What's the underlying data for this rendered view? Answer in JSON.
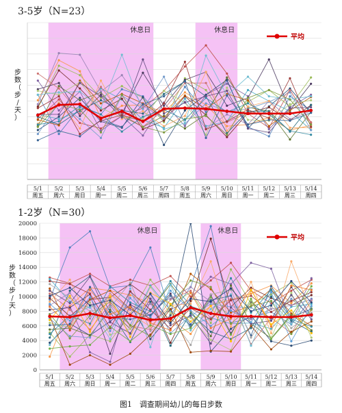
{
  "chart_data": [
    {
      "type": "line",
      "title": "3-5岁（N=23）",
      "ylabel": "步数（步/天）",
      "y_ticks_labeled": false,
      "ylim": [
        0,
        20000
      ],
      "grid": true,
      "legend": "top-right",
      "categories": [
        "5/1",
        "5/2",
        "5/3",
        "5/4",
        "5/5",
        "5/6",
        "5/7",
        "5/8",
        "5/9",
        "5/10",
        "5/11",
        "5/12",
        "5/13",
        "5/14"
      ],
      "weekdays": [
        "周五",
        "周六",
        "周日",
        "周一",
        "周二",
        "周三",
        "周四",
        "周五",
        "周六",
        "周日",
        "周一",
        "周二",
        "周三",
        "周四"
      ],
      "rest_periods": [
        {
          "from": "5/2",
          "to": "5/6",
          "label": "休息日"
        },
        {
          "from": "5/9",
          "to": "5/10",
          "label": "休息日"
        }
      ],
      "average": {
        "name": "平均",
        "color": "#e00000",
        "values": [
          8200,
          9500,
          9600,
          7800,
          8700,
          7400,
          9000,
          9100,
          9000,
          8700,
          8400,
          8400,
          8400,
          8800
        ]
      },
      "individual_series": [
        [
          10800,
          5800,
          9200,
          8300,
          11500,
          10600,
          7500,
          11800,
          8600,
          12600,
          6700,
          5500,
          10600,
          8800
        ],
        [
          7700,
          10200,
          7200,
          6500,
          8100,
          9100,
          11300,
          14400,
          17100,
          13500,
          8400,
          6600,
          11400,
          7200
        ],
        [
          9100,
          14500,
          13300,
          10400,
          11900,
          10400,
          7300,
          12900,
          11400,
          7400,
          9900,
          11400,
          9300,
          13000
        ],
        [
          12600,
          8800,
          11200,
          6200,
          8100,
          5600,
          9800,
          6800,
          10800,
          12200,
          10600,
          6400,
          9200,
          10800
        ],
        [
          8300,
          7700,
          8700,
          11600,
          10200,
          7600,
          6600,
          10300,
          6800,
          7400,
          11400,
          10000,
          8700,
          6300
        ],
        [
          10100,
          15200,
          13800,
          7800,
          9400,
          9500,
          8600,
          11100,
          9500,
          6800,
          7000,
          7900,
          6300,
          6900
        ],
        [
          6300,
          8000,
          10400,
          7400,
          6600,
          10500,
          4400,
          8800,
          10800,
          12700,
          6500,
          9300,
          11600,
          8500
        ],
        [
          9300,
          13900,
          11600,
          8800,
          10300,
          6400,
          7500,
          10600,
          8200,
          5400,
          8500,
          9200,
          7500,
          9500
        ],
        [
          6800,
          11900,
          10100,
          11100,
          8100,
          6700,
          8100,
          6500,
          8300,
          13000,
          9200,
          8700,
          5100,
          8600
        ],
        [
          11500,
          12300,
          8100,
          10800,
          8400,
          13600,
          9400,
          12700,
          13700,
          9400,
          10400,
          15300,
          8800,
          12200
        ],
        [
          8000,
          7000,
          8800,
          10100,
          8800,
          8400,
          10900,
          12500,
          10600,
          5900,
          8700,
          8700,
          6100,
          9500
        ],
        [
          7600,
          6900,
          12600,
          9700,
          10900,
          9700,
          7900,
          10700,
          9000,
          10900,
          10100,
          6800,
          8800,
          10500
        ],
        [
          5800,
          9800,
          7700,
          5300,
          10700,
          9000,
          13100,
          7100,
          9700,
          8700,
          9000,
          9900,
          11100,
          6300
        ],
        [
          13500,
          11600,
          8400,
          11800,
          8300,
          6700,
          8900,
          12300,
          12300,
          7300,
          8500,
          8500,
          11400,
          7300
        ],
        [
          11300,
          10800,
          12400,
          9100,
          7900,
          7700,
          11300,
          9800,
          5700,
          11700,
          7600,
          7500,
          9600,
          10100
        ],
        [
          9600,
          16100,
          15900,
          11200,
          13300,
          9400,
          7800,
          9900,
          6500,
          8300,
          7000,
          10000,
          7700,
          8700
        ],
        [
          10800,
          11100,
          11200,
          9100,
          15900,
          8700,
          6400,
          7200,
          15800,
          10700,
          13100,
          10600,
          10200,
          10600
        ],
        [
          7100,
          9800,
          6500,
          12600,
          7700,
          8700,
          6800,
          8100,
          13700,
          6200,
          9300,
          10000,
          6600,
          6600
        ],
        [
          5000,
          6200,
          5500,
          7600,
          6700,
          9600,
          10600,
          12500,
          5300,
          10700,
          7000,
          7600,
          7500,
          8500
        ],
        [
          9100,
          10600,
          5800,
          7500,
          8200,
          7400,
          9700,
          15000,
          6400,
          7400,
          8900,
          7800,
          12900,
          6700
        ],
        [
          6700,
          9600,
          8900,
          6000,
          10800,
          6700,
          6000,
          7700,
          8100,
          5700,
          10400,
          11400,
          10200,
          7000
        ],
        [
          8300,
          8300,
          12300,
          10600,
          7900,
          15300,
          8400,
          9800,
          10600,
          11300,
          6500,
          6000,
          9100,
          9200
        ],
        [
          7000,
          7400,
          9400,
          8300,
          6100,
          8000,
          8900,
          7600,
          10400,
          8600,
          9700,
          8300,
          6200,
          5700
        ]
      ]
    },
    {
      "type": "line",
      "title": "1-2岁（N=30）",
      "ylabel": "步数（步/天）",
      "yticks": [
        "0",
        "2000",
        "4000",
        "6000",
        "8000",
        "10000",
        "12000",
        "14000",
        "16000",
        "18000",
        "20000"
      ],
      "ylim": [
        0,
        20000
      ],
      "grid": true,
      "legend": "top-right",
      "categories": [
        "5/1",
        "5/2",
        "5/3",
        "5/4",
        "5/5",
        "5/6",
        "5/7",
        "5/8",
        "5/9",
        "5/10",
        "5/11",
        "5/12",
        "5/13",
        "5/14"
      ],
      "weekdays": [
        "周五",
        "周六",
        "周日",
        "周一",
        "周二",
        "周三",
        "周四",
        "周五",
        "周六",
        "周日",
        "周一",
        "周二",
        "周三",
        "周四"
      ],
      "rest_periods": [
        {
          "from": "5/2",
          "to": "5/6",
          "label": "休息日"
        },
        {
          "from": "5/9",
          "to": "5/10",
          "label": "休息日"
        }
      ],
      "average": {
        "name": "平均",
        "color": "#e00000",
        "values": [
          7300,
          7200,
          7700,
          7100,
          7400,
          6800,
          7000,
          8500,
          7700,
          7300,
          7300,
          7200,
          7200,
          7500
        ]
      },
      "individual_series": [
        [
          9600,
          16700,
          18900,
          11200,
          11500,
          16700,
          7500,
          11300,
          19600,
          6400,
          7100,
          7900,
          6200,
          9700
        ],
        [
          12600,
          11800,
          13100,
          11400,
          12300,
          11500,
          12800,
          10000,
          12200,
          14600,
          10800,
          9100,
          10800,
          12300
        ],
        [
          5100,
          1800,
          4800,
          3900,
          7600,
          12300,
          8900,
          10600,
          6400,
          13700,
          9000,
          10300,
          11900,
          8400
        ],
        [
          7600,
          8700,
          2400,
          1100,
          10700,
          6600,
          8200,
          9700,
          12700,
          11700,
          14600,
          13800,
          6400,
          12500
        ],
        [
          12400,
          9300,
          8500,
          9900,
          6100,
          11500,
          8100,
          6100,
          7100,
          6300,
          6400,
          5600,
          8600,
          9000
        ],
        [
          1800,
          8700,
          11200,
          10800,
          10200,
          9100,
          6900,
          4900,
          8800,
          9600,
          10400,
          11500,
          9100,
          11800
        ],
        [
          3700,
          6300,
          4700,
          6600,
          8900,
          4200,
          7500,
          20000,
          2500,
          5600,
          7400,
          3900,
          3300,
          4000
        ],
        [
          9800,
          7300,
          9600,
          9900,
          11700,
          9700,
          3700,
          9400,
          17900,
          8600,
          11200,
          9800,
          8800,
          10200
        ],
        [
          5500,
          5700,
          4700,
          8200,
          5600,
          8100,
          11700,
          8000,
          4600,
          11500,
          6300,
          4300,
          7600,
          5400
        ],
        [
          8200,
          8500,
          10300,
          2200,
          8900,
          7400,
          10400,
          5800,
          10200,
          5000,
          9300,
          6900,
          11300,
          7300
        ],
        [
          4400,
          10800,
          12800,
          7900,
          3800,
          9300,
          3300,
          7700,
          5200,
          4200,
          5700,
          10000,
          6700,
          5200
        ],
        [
          11100,
          5400,
          9600,
          10800,
          8300,
          7000,
          6600,
          13100,
          11000,
          7800,
          8700,
          11000,
          7700,
          6000
        ],
        [
          7000,
          4600,
          4400,
          8800,
          4900,
          10300,
          5000,
          7400,
          9000,
          8600,
          8500,
          6900,
          9700,
          7300
        ],
        [
          10400,
          8200,
          5500,
          9000,
          6000,
          5500,
          9600,
          10800,
          7000,
          9700,
          3500,
          7100,
          5000,
          9500
        ],
        [
          6400,
          5800,
          9200,
          4800,
          5600,
          11300,
          7700,
          7100,
          4100,
          2700,
          9500,
          4400,
          10500,
          4400
        ],
        [
          8800,
          10500,
          7000,
          10400,
          8200,
          9000,
          9700,
          11300,
          9300,
          7400,
          6900,
          8300,
          8800,
          9600
        ],
        [
          3400,
          7300,
          8600,
          4200,
          11100,
          3100,
          11600,
          5400,
          8300,
          10300,
          3300,
          9400,
          6300,
          11000
        ],
        [
          9300,
          12300,
          6100,
          10300,
          7700,
          5900,
          8800,
          9000,
          14800,
          5900,
          12000,
          5000,
          14800,
          7700
        ],
        [
          6100,
          6200,
          11300,
          7100,
          6900,
          7500,
          10100,
          6200,
          9500,
          10100,
          4700,
          11400,
          7200,
          8300
        ],
        [
          12100,
          11700,
          10400,
          5700,
          10700,
          8200,
          5600,
          8400,
          6900,
          9500,
          10100,
          7900,
          9400,
          10600
        ],
        [
          7600,
          4300,
          7400,
          9300,
          6100,
          4600,
          8800,
          12200,
          11300,
          6300,
          8700,
          9400,
          4900,
          8200
        ],
        [
          10800,
          9100,
          12700,
          6500,
          5000,
          9700,
          6100,
          7400,
          3600,
          8500,
          6300,
          6700,
          10200,
          6900
        ],
        [
          4900,
          7400,
          6300,
          11400,
          9200,
          8000,
          12100,
          8700,
          7700,
          12500,
          7800,
          10900,
          6900,
          5900
        ],
        [
          8600,
          5900,
          10900,
          7600,
          8600,
          6400,
          5400,
          10500,
          5700,
          7000,
          11000,
          5900,
          11500,
          10900
        ],
        [
          11700,
          9800,
          8000,
          8500,
          11900,
          5300,
          7200,
          3400,
          10300,
          10900,
          4400,
          8700,
          5700,
          7800
        ],
        [
          6800,
          10100,
          5200,
          10000,
          4500,
          10500,
          9000,
          6600,
          8700,
          3900,
          10900,
          6200,
          8100,
          5000
        ],
        [
          9000,
          6700,
          9900,
          5300,
          9800,
          7200,
          10800,
          8100,
          6000,
          8100,
          6500,
          10600,
          3900,
          8700
        ],
        [
          2900,
          3200,
          3400,
          5900,
          3900,
          6100,
          4900,
          5700,
          9900,
          4800,
          9700,
          4200,
          7400,
          11400
        ],
        [
          10100,
          11200,
          8800,
          9500,
          7500,
          10400,
          6400,
          9700,
          9300,
          11100,
          8000,
          8800,
          12100,
          9200
        ],
        [
          7300,
          700,
          2000,
          700,
          2200,
          4800,
          8300,
          2400,
          2600,
          2500,
          6000,
          2800,
          5200,
          6600
        ]
      ]
    }
  ],
  "figure": {
    "caption": "图1　调查期间幼儿的每日步数"
  }
}
